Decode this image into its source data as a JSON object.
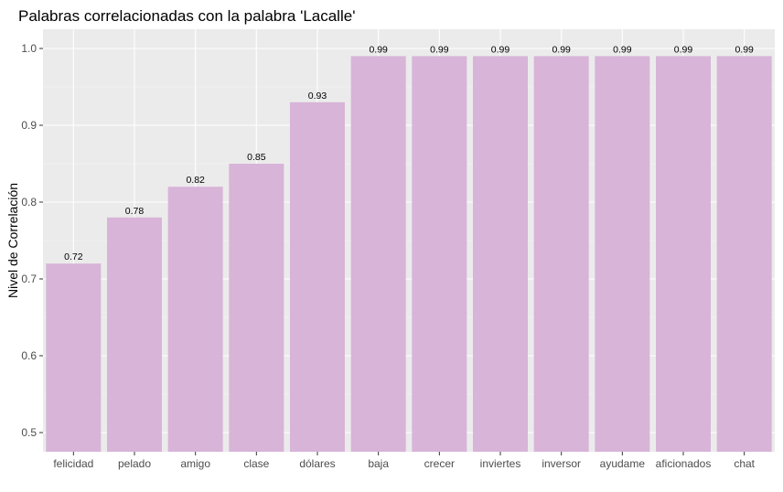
{
  "chart_data": {
    "type": "bar",
    "title": "Palabras correlacionadas con la palabra 'Lacalle'",
    "xlabel": "",
    "ylabel": "Nivel de Correlación",
    "categories": [
      "felicidad",
      "pelado",
      "amigo",
      "clase",
      "dólares",
      "baja",
      "crecer",
      "inviertes",
      "inversor",
      "ayudame",
      "aficionados",
      "chat"
    ],
    "values": [
      0.72,
      0.78,
      0.82,
      0.85,
      0.93,
      0.99,
      0.99,
      0.99,
      0.99,
      0.99,
      0.99,
      0.99
    ],
    "value_labels": [
      "0.72",
      "0.78",
      "0.82",
      "0.85",
      "0.93",
      "0.99",
      "0.99",
      "0.99",
      "0.99",
      "0.99",
      "0.99",
      "0.99"
    ],
    "yticks": [
      0.5,
      0.6,
      0.7,
      0.8,
      0.9,
      1.0
    ],
    "ytick_labels": [
      "0.5",
      "0.6",
      "0.7",
      "0.8",
      "0.9",
      "1.0"
    ],
    "ylim": [
      0.475,
      1.025
    ],
    "grid": true,
    "legend": "none",
    "colors": {
      "bar": "#d8b4d8",
      "panel": "#ebebeb",
      "grid_major": "#ffffff",
      "grid_minor": "#f5f5f5"
    }
  }
}
